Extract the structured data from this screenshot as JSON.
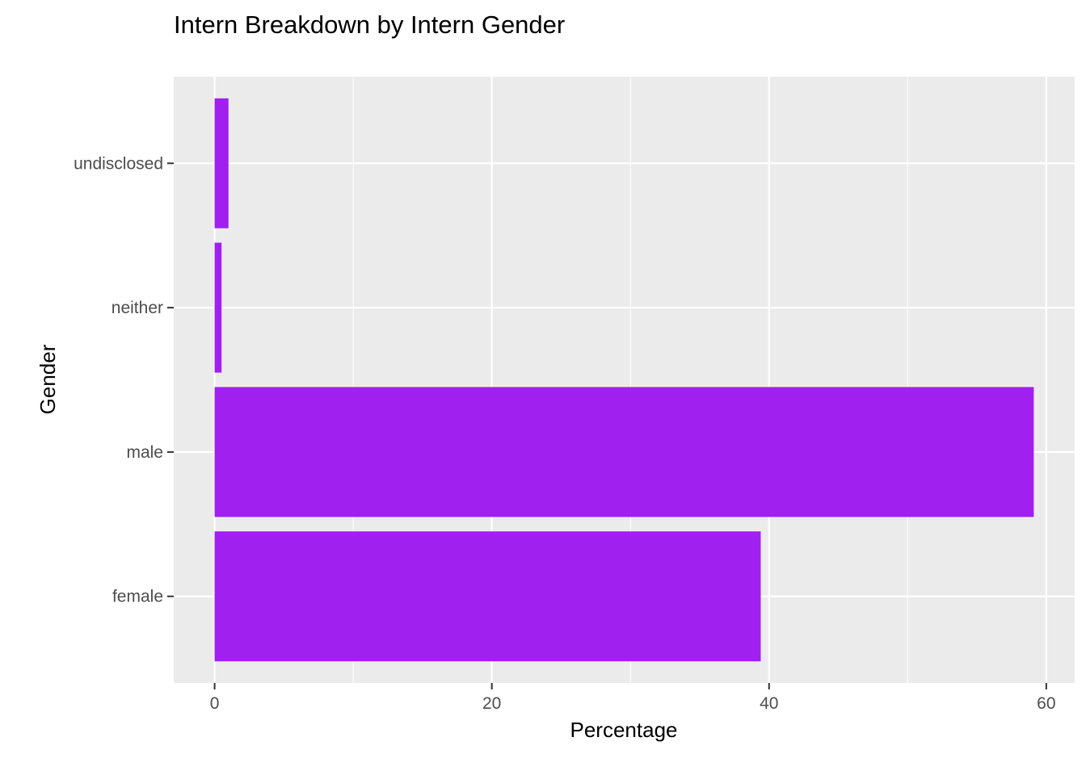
{
  "chart_data": {
    "type": "bar",
    "orientation": "horizontal",
    "title": "Intern Breakdown by Intern Gender",
    "xlabel": "Percentage",
    "ylabel": "Gender",
    "categories": [
      "female",
      "male",
      "neither",
      "undisclosed"
    ],
    "values": [
      39.4,
      59.1,
      0.5,
      1.0
    ],
    "xlim": [
      -2.95,
      62.05
    ],
    "xticks": [
      0,
      20,
      40,
      60
    ],
    "xtick_labels": [
      "0",
      "20",
      "40",
      "60"
    ],
    "grid": true,
    "legend": "none",
    "colors": {
      "bar": "#a020f0",
      "panel": "#ebebeb",
      "grid": "#ffffff",
      "tick_text": "#4d4d4d",
      "tick_mark": "#333333"
    }
  }
}
